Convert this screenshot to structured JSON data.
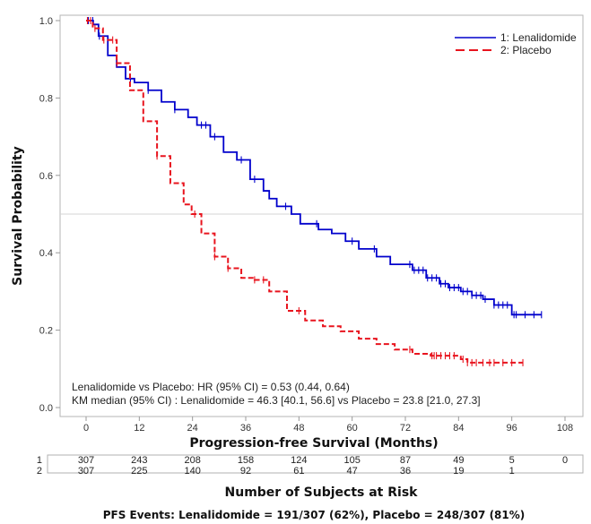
{
  "chart_data": {
    "type": "line",
    "subtype": "kaplan-meier",
    "title": "",
    "xlabel": "Progression-free Survival  (Months)",
    "ylabel": "Survival Probability",
    "xlim": [
      0,
      108
    ],
    "ylim": [
      0.0,
      1.0
    ],
    "xticks": [
      0,
      12,
      24,
      36,
      48,
      60,
      72,
      84,
      96,
      108
    ],
    "yticks": [
      "0.0",
      "0.2",
      "0.4",
      "0.6",
      "0.8",
      "1.0"
    ],
    "reference_line_y": 0.5,
    "grid": false,
    "legend_position": "top-right",
    "colors": {
      "lenalidomide": "#0000cc",
      "placebo": "#e8141e"
    },
    "series": [
      {
        "name": "1: Lenalidomide",
        "style": "solid",
        "x": [
          0,
          1.6,
          2.8,
          4.9,
          6.9,
          8.9,
          10.9,
          14,
          17,
          20,
          23,
          25,
          28,
          31,
          34,
          37,
          40,
          41.3,
          43,
          46.3,
          48.3,
          52.4,
          55.4,
          58.5,
          61.5,
          65.5,
          68.6,
          73.6,
          76.7,
          79.7,
          81.7,
          84.5,
          87,
          89.5,
          92,
          95.5,
          96,
          102.7
        ],
        "y": [
          1.0,
          0.99,
          0.96,
          0.91,
          0.88,
          0.85,
          0.84,
          0.82,
          0.79,
          0.77,
          0.75,
          0.73,
          0.7,
          0.66,
          0.64,
          0.59,
          0.56,
          0.54,
          0.52,
          0.5,
          0.475,
          0.46,
          0.45,
          0.43,
          0.41,
          0.39,
          0.37,
          0.355,
          0.335,
          0.32,
          0.31,
          0.3,
          0.29,
          0.28,
          0.265,
          0.265,
          0.24,
          0.24
        ],
        "censor_x": [
          0.5,
          1.5,
          3,
          10,
          14,
          20,
          26,
          27,
          29,
          35,
          38,
          45,
          52,
          60,
          65,
          73,
          74,
          75,
          76,
          77,
          78,
          79,
          80,
          81,
          82,
          83,
          84,
          85,
          86,
          87,
          88,
          89,
          90,
          92,
          93,
          94,
          95,
          96.5,
          97,
          99,
          101,
          102.7
        ]
      },
      {
        "name": "2: Placebo",
        "style": "dashed",
        "x": [
          0,
          1.5,
          3.8,
          6.9,
          9.9,
          12.9,
          16,
          19,
          22,
          23.8,
          26,
          29,
          32,
          35,
          38,
          41.3,
          45.3,
          49.4,
          53.4,
          57.4,
          61.5,
          65.5,
          69.6,
          73.6,
          77.7,
          81.7,
          84.5,
          86,
          98.5
        ],
        "y": [
          1.0,
          0.98,
          0.95,
          0.89,
          0.82,
          0.74,
          0.65,
          0.58,
          0.525,
          0.5,
          0.45,
          0.39,
          0.36,
          0.335,
          0.33,
          0.3,
          0.25,
          0.225,
          0.21,
          0.197,
          0.178,
          0.164,
          0.15,
          0.139,
          0.134,
          0.134,
          0.125,
          0.116,
          0.116
        ],
        "censor_x": [
          0.3,
          1,
          2,
          4,
          6,
          7,
          16,
          24.5,
          29,
          32,
          38,
          40,
          48,
          73,
          78,
          78.5,
          79,
          80,
          81,
          82,
          83,
          85,
          86,
          87,
          88,
          89.5,
          91,
          92,
          94,
          96,
          98.5
        ]
      }
    ],
    "annotations": [
      "Lenalidomide vs Placebo: HR (95% CI) = 0.53 (0.44, 0.64)",
      "KM median (95% CI) : Lenalidomide = 46.3 [40.1, 56.6] vs Placebo = 23.8 [21.0, 27.3]"
    ],
    "risk_table": {
      "title": "Number of Subjects at Risk",
      "times": [
        0,
        12,
        24,
        36,
        48,
        60,
        72,
        84,
        96,
        108
      ],
      "rows": [
        {
          "label": "1",
          "values": [
            "307",
            "243",
            "208",
            "158",
            "124",
            "105",
            "87",
            "49",
            "5",
            "0"
          ]
        },
        {
          "label": "2",
          "values": [
            "307",
            "225",
            "140",
            "92",
            "61",
            "47",
            "36",
            "19",
            "1",
            ""
          ]
        }
      ]
    },
    "footer": "PFS Events: Lenalidomide  = 191/307 (62%), Placebo = 248/307 (81%)"
  }
}
